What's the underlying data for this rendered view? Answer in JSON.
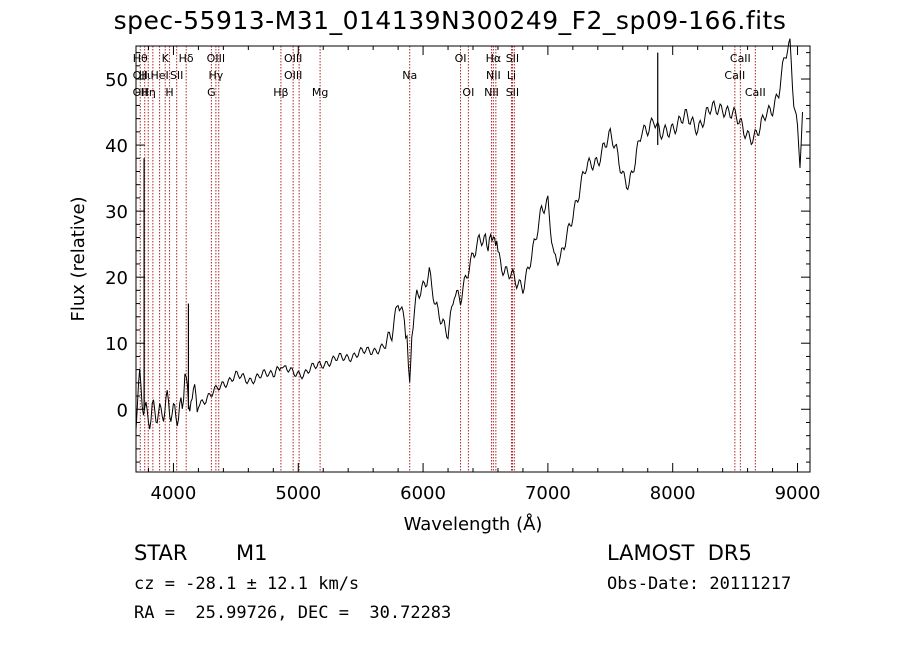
{
  "chart_data": {
    "type": "line",
    "title": "spec-55913-M31_014139N300249_F2_sp09-166.fits",
    "xlabel": "Wavelength (Å)",
    "ylabel": "Flux (relative)",
    "xlim": [
      3700,
      9100
    ],
    "ylim": [
      -9.5,
      55
    ],
    "xticks": [
      4000,
      5000,
      6000,
      7000,
      8000,
      9000
    ],
    "yticks": [
      0,
      10,
      20,
      30,
      40,
      50
    ],
    "series": [
      {
        "x": [
          3700,
          3730,
          3760,
          3790,
          3830,
          3870,
          3900,
          3950,
          4000,
          4050,
          4102,
          4150,
          4200,
          4300,
          4400,
          4500,
          4600,
          4700,
          4800,
          4861,
          4900,
          4950,
          5000,
          5050,
          5100,
          5150,
          5200,
          5300,
          5400,
          5500,
          5600,
          5700,
          5750,
          5800,
          5850,
          5893,
          5910,
          5950,
          6000,
          6050,
          6100,
          6150,
          6200,
          6250,
          6300,
          6350,
          6400,
          6450,
          6500,
          6563,
          6600,
          6650,
          6700,
          6750,
          6800,
          6850,
          6900,
          6950,
          7000,
          7050,
          7100,
          7150,
          7200,
          7250,
          7300,
          7350,
          7400,
          7450,
          7500,
          7550,
          7600,
          7650,
          7700,
          7750,
          7800,
          7850,
          7900,
          7950,
          8000,
          8100,
          8200,
          8300,
          8400,
          8500,
          8550,
          8600,
          8650,
          8700,
          8750,
          8800,
          8850,
          8900,
          8940,
          8970,
          9000,
          9020,
          9040
        ],
        "y": [
          -2,
          3,
          0,
          -1,
          1,
          0,
          -2,
          0,
          0,
          1,
          3,
          2,
          1,
          2,
          4,
          5,
          4.5,
          5,
          5.5,
          6.5,
          6,
          5.5,
          5.5,
          5.5,
          6,
          6.5,
          7,
          7.5,
          8,
          8.5,
          9,
          9.5,
          11,
          17,
          14,
          5,
          11,
          17,
          19,
          21,
          15,
          13,
          12,
          18,
          16,
          20,
          24,
          26,
          25,
          26,
          24,
          21,
          20,
          19,
          19,
          22,
          25,
          30,
          32,
          23,
          22,
          26,
          30,
          33,
          36,
          37,
          38,
          40,
          41,
          39,
          36,
          34,
          37,
          42,
          43,
          44,
          41,
          42,
          43,
          44,
          43,
          45,
          46,
          44,
          43,
          42,
          41,
          42,
          45,
          46,
          48,
          53,
          55,
          47,
          43,
          38,
          45
        ]
      },
      {
        "x": [
          3765,
          4120
        ],
        "y": [
          38,
          16
        ]
      },
      {
        "x": [
          7880
        ],
        "y": [
          54
        ]
      }
    ],
    "annotations": [
      {
        "lambda": 3734,
        "lines": [
          "Hθ",
          "OII",
          "OII"
        ]
      },
      {
        "lambda": 3770,
        "lines": [
          "",
          "Hι",
          ""
        ]
      },
      {
        "lambda": 3798,
        "lines": [
          "",
          "",
          "Hη"
        ]
      },
      {
        "lambda": 3835,
        "lines": [
          "",
          "",
          ""
        ]
      },
      {
        "lambda": 3889,
        "lines": [
          "",
          "HeI",
          ""
        ]
      },
      {
        "lambda": 3934,
        "lines": [
          "K",
          "",
          ""
        ]
      },
      {
        "lambda": 3969,
        "lines": [
          "",
          "",
          "H"
        ]
      },
      {
        "lambda": 4026,
        "lines": [
          "",
          "SII",
          ""
        ]
      },
      {
        "lambda": 4102,
        "lines": [
          "Hδ",
          "",
          ""
        ]
      },
      {
        "lambda": 4304,
        "lines": [
          "",
          "",
          "G"
        ]
      },
      {
        "lambda": 4340,
        "lines": [
          "OIII",
          "Hγ",
          ""
        ]
      },
      {
        "lambda": 4363,
        "lines": [
          "",
          "",
          ""
        ]
      },
      {
        "lambda": 4861,
        "lines": [
          "",
          "",
          "Hβ"
        ]
      },
      {
        "lambda": 4959,
        "lines": [
          "OIII",
          "OIII",
          ""
        ]
      },
      {
        "lambda": 5007,
        "lines": [
          "",
          "",
          ""
        ]
      },
      {
        "lambda": 5175,
        "lines": [
          "",
          "",
          "Mg"
        ]
      },
      {
        "lambda": 5893,
        "lines": [
          "",
          "Na",
          ""
        ]
      },
      {
        "lambda": 6300,
        "lines": [
          "OI",
          "",
          ""
        ]
      },
      {
        "lambda": 6363,
        "lines": [
          "",
          "",
          "OI"
        ]
      },
      {
        "lambda": 6548,
        "lines": [
          "",
          "",
          "NII"
        ]
      },
      {
        "lambda": 6563,
        "lines": [
          "Hα",
          "NII",
          ""
        ]
      },
      {
        "lambda": 6583,
        "lines": [
          "",
          "",
          ""
        ]
      },
      {
        "lambda": 6708,
        "lines": [
          "",
          "Li",
          ""
        ]
      },
      {
        "lambda": 6716,
        "lines": [
          "SII",
          "",
          "SII"
        ]
      },
      {
        "lambda": 6731,
        "lines": [
          "",
          "",
          ""
        ]
      },
      {
        "lambda": 8498,
        "lines": [
          "",
          "CaII",
          ""
        ]
      },
      {
        "lambda": 8542,
        "lines": [
          "CaII",
          "",
          ""
        ]
      },
      {
        "lambda": 8662,
        "lines": [
          "",
          "",
          "CaII"
        ]
      }
    ]
  },
  "info": {
    "class_label": "STAR",
    "subclass_label": "M1",
    "survey_label": "LAMOST  DR5",
    "cz_label": "cz = -28.1 ± 12.1 km/s",
    "obs_date_label": "Obs-Date: 20111217",
    "radec_label": "RA =  25.99726, DEC =  30.72283"
  },
  "colors": {
    "spectrum": "#000000",
    "line_marker": "#b22222"
  }
}
